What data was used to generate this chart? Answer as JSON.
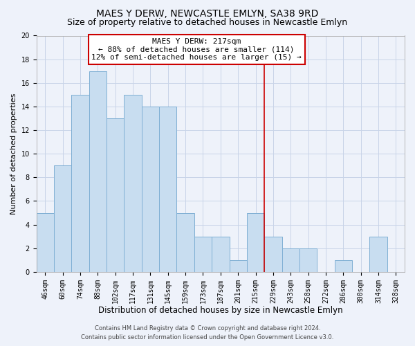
{
  "title": "MAES Y DERW, NEWCASTLE EMLYN, SA38 9RD",
  "subtitle": "Size of property relative to detached houses in Newcastle Emlyn",
  "xlabel": "Distribution of detached houses by size in Newcastle Emlyn",
  "ylabel": "Number of detached properties",
  "bar_labels": [
    "46sqm",
    "60sqm",
    "74sqm",
    "88sqm",
    "102sqm",
    "117sqm",
    "131sqm",
    "145sqm",
    "159sqm",
    "173sqm",
    "187sqm",
    "201sqm",
    "215sqm",
    "229sqm",
    "243sqm",
    "258sqm",
    "272sqm",
    "286sqm",
    "300sqm",
    "314sqm",
    "328sqm"
  ],
  "bar_values": [
    5,
    9,
    15,
    17,
    13,
    15,
    14,
    14,
    5,
    3,
    3,
    1,
    5,
    3,
    2,
    2,
    0,
    1,
    0,
    3,
    0
  ],
  "bar_color": "#c8ddf0",
  "bar_edge_color": "#7fafd4",
  "grid_color": "#c8d4e8",
  "background_color": "#eef2fa",
  "annotation_line1": "MAES Y DERW: 217sqm",
  "annotation_line2": "← 88% of detached houses are smaller (114)",
  "annotation_line3": "12% of semi-detached houses are larger (15) →",
  "annotation_box_edge_color": "#cc0000",
  "annotation_box_bg": "#ffffff",
  "vertical_line_color": "#cc0000",
  "vertical_line_x": 12.5,
  "ylim": [
    0,
    20
  ],
  "yticks": [
    0,
    2,
    4,
    6,
    8,
    10,
    12,
    14,
    16,
    18,
    20
  ],
  "footer_line1": "Contains HM Land Registry data © Crown copyright and database right 2024.",
  "footer_line2": "Contains public sector information licensed under the Open Government Licence v3.0.",
  "title_fontsize": 10,
  "subtitle_fontsize": 9,
  "xlabel_fontsize": 8.5,
  "ylabel_fontsize": 8,
  "tick_fontsize": 7,
  "annotation_fontsize": 8,
  "footer_fontsize": 6
}
